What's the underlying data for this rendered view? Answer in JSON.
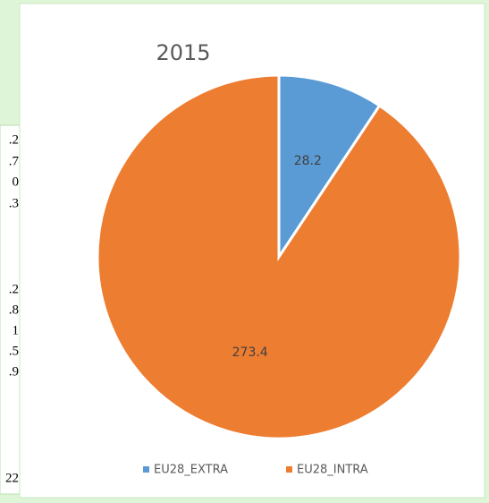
{
  "chart_data": {
    "type": "pie",
    "title": "2015",
    "categories": [
      "EU28_EXTRA",
      "EU28_INTRA"
    ],
    "values": [
      28.2,
      273.4
    ],
    "colors": [
      "#5b9bd5",
      "#ed7d31"
    ],
    "legend": "bottom"
  },
  "table_fragments": [
    ".2",
    ".7",
    "0",
    ".3",
    ".2",
    ".8",
    "1",
    ".5",
    ".9",
    "22"
  ]
}
